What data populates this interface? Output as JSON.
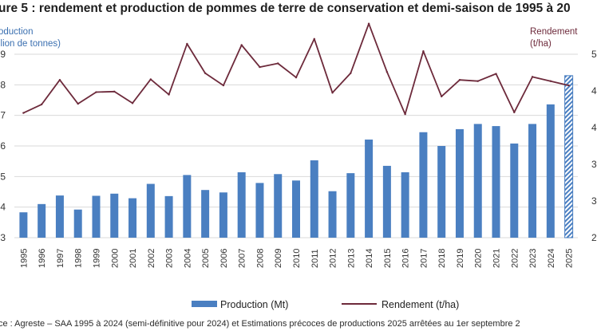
{
  "title": "ure 5 : rendement et production de pommes de terre de conservation et demi-saison de 1995 à 20",
  "source": "ce : Agreste – SAA 1995 à 2024 (semi-définitive pour 2024) et Estimations précoces de productions 2025 arrêtées au 1er septembre 2",
  "left_axis_title": [
    "oduction",
    "llion de tonnes)"
  ],
  "right_axis_title": [
    "Rendement",
    "(t/ha)"
  ],
  "colors": {
    "bar": "#4a7fc1",
    "line": "#6d2a3b",
    "grid": "#d9d9d9"
  },
  "chart_data": {
    "type": "bar",
    "categories": [
      "1995",
      "1996",
      "1997",
      "1998",
      "1999",
      "2000",
      "2001",
      "2002",
      "2003",
      "2004",
      "2005",
      "2006",
      "2007",
      "2008",
      "2009",
      "2010",
      "2011",
      "2012",
      "2013",
      "2014",
      "2015",
      "2016",
      "2017",
      "2018",
      "2019",
      "2020",
      "2021",
      "2022",
      "2023",
      "2024",
      "2025"
    ],
    "series": [
      {
        "name": "Production (Mt)",
        "type": "bar",
        "axis": "left",
        "values": [
          3.83,
          4.1,
          4.38,
          3.92,
          4.37,
          4.44,
          4.29,
          4.76,
          4.36,
          5.05,
          4.56,
          4.48,
          5.14,
          4.79,
          5.08,
          4.87,
          5.53,
          4.52,
          5.11,
          6.21,
          5.35,
          5.14,
          6.45,
          6.0,
          6.55,
          6.72,
          6.65,
          6.08,
          6.72,
          7.36,
          8.3
        ],
        "hatched_last": true
      },
      {
        "name": "Rendement (t/ha)",
        "type": "line",
        "axis": "right",
        "values": [
          40.4,
          41.8,
          45.8,
          41.9,
          43.8,
          43.9,
          42.0,
          45.9,
          43.4,
          51.7,
          46.9,
          44.9,
          51.5,
          47.9,
          48.5,
          46.2,
          52.5,
          43.7,
          46.9,
          55.0,
          47.1,
          40.2,
          50.5,
          43.1,
          45.8,
          45.6,
          46.8,
          40.5,
          46.3,
          45.6,
          44.9
        ]
      }
    ],
    "left_ylim": [
      3,
      9
    ],
    "left_yticks": [
      "3",
      "4",
      "5",
      "6",
      "7",
      "8",
      "9"
    ],
    "right_ylim": [
      20,
      50
    ],
    "right_yticks": [
      "2",
      "3",
      "3",
      "4",
      "4",
      "5"
    ],
    "grid": true,
    "legend": {
      "placement": "bottom",
      "entries": [
        {
          "label": "Production (Mt)",
          "kind": "bar"
        },
        {
          "label": "Rendement (t/ha)",
          "kind": "line"
        }
      ]
    }
  }
}
